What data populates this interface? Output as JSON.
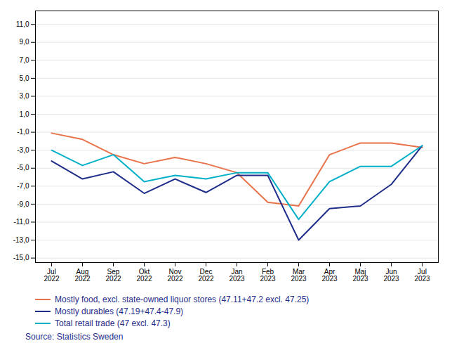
{
  "chart_data": {
    "type": "line",
    "categories": [
      "Jul\n2022",
      "Aug\n2022",
      "Sep\n2022",
      "Okt\n2022",
      "Nov\n2022",
      "Dec\n2022",
      "Jan\n2023",
      "Feb\n2023",
      "Mar\n2023",
      "Apr\n2023",
      "Maj\n2023",
      "Jun\n2023",
      "Jul\n2023"
    ],
    "series": [
      {
        "name": "Mostly food, excl. state-owned liquor stores (47.11+47.2 excl. 47.25)",
        "color": "#e8734a",
        "values": [
          -1.1,
          -1.8,
          -3.5,
          -4.5,
          -3.8,
          -4.5,
          -5.5,
          -8.8,
          -9.2,
          -3.5,
          -2.2,
          -2.2,
          -2.7
        ]
      },
      {
        "name": "Mostly durables (47.19+47.4-47.9)",
        "color": "#1f2d8a",
        "values": [
          -4.2,
          -6.2,
          -5.4,
          -7.8,
          -6.2,
          -7.7,
          -5.8,
          -5.8,
          -13.0,
          -9.5,
          -9.2,
          -6.8,
          -2.5
        ]
      },
      {
        "name": "Total retail trade (47 excl. 47.3)",
        "color": "#00b0c8",
        "values": [
          -3.0,
          -4.7,
          -3.5,
          -6.5,
          -5.8,
          -6.2,
          -5.5,
          -5.5,
          -10.7,
          -6.5,
          -4.8,
          -4.8,
          -2.5
        ]
      }
    ],
    "ylim": [
      -15.5,
      12.5
    ],
    "yticks": [
      {
        "value": -15,
        "label": "-15,0"
      },
      {
        "value": -13,
        "label": "-13,0"
      },
      {
        "value": -11,
        "label": "-11,0"
      },
      {
        "value": -9,
        "label": "-9,0"
      },
      {
        "value": -7,
        "label": "-7,0"
      },
      {
        "value": -5,
        "label": "-5,0"
      },
      {
        "value": -3,
        "label": "-3,0"
      },
      {
        "value": -1,
        "label": "-1,0"
      },
      {
        "value": 1,
        "label": "1,0"
      },
      {
        "value": 3,
        "label": "3,0"
      },
      {
        "value": 5,
        "label": "5,0"
      },
      {
        "value": 7,
        "label": "7,0"
      },
      {
        "value": 9,
        "label": "9,0"
      },
      {
        "value": 11,
        "label": "11,0"
      }
    ],
    "grid": true,
    "caption": "Source: Statistics Sweden"
  }
}
